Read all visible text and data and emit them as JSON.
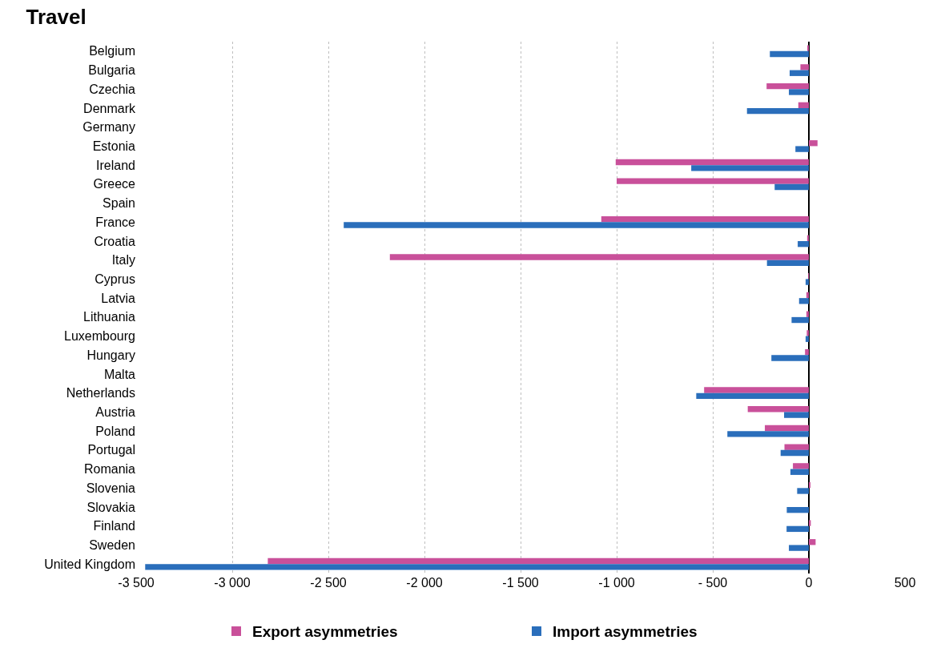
{
  "chart_data": {
    "type": "bar",
    "orientation": "horizontal",
    "title": "Travel",
    "categories": [
      "Belgium",
      "Bulgaria",
      "Czechia",
      "Denmark",
      "Germany",
      "Estonia",
      "Ireland",
      "Greece",
      "Spain",
      "France",
      "Croatia",
      "Italy",
      "Cyprus",
      "Latvia",
      "Lithuania",
      "Luxembourg",
      "Hungary",
      "Malta",
      "Netherlands",
      "Austria",
      "Poland",
      "Portugal",
      "Romania",
      "Slovenia",
      "Slovakia",
      "Finland",
      "Sweden",
      "United Kingdom"
    ],
    "series": [
      {
        "name": "Export asymmetries",
        "color": "#c9509a",
        "values": [
          -8,
          -44,
          -220,
          -55,
          null,
          45,
          -1005,
          -1000,
          null,
          -1080,
          -9,
          -2180,
          -3,
          -13,
          -13,
          -11,
          -20,
          null,
          -545,
          -318,
          -229,
          -127,
          -83,
          6,
          null,
          10,
          35,
          -2815
        ]
      },
      {
        "name": "Import asymmetries",
        "color": "#2a6ebb",
        "values": [
          -203,
          -100,
          -104,
          -322,
          null,
          -70,
          -612,
          -178,
          null,
          -2420,
          -58,
          -218,
          -17,
          -51,
          -90,
          -17,
          -195,
          null,
          -586,
          -129,
          -424,
          -147,
          -96,
          -61,
          -115,
          -116,
          -104,
          -3453
        ]
      }
    ],
    "xlim": [
      -3500,
      500
    ],
    "xticks": [
      {
        "value": -3500,
        "label": "-3 500"
      },
      {
        "value": -3000,
        "label": "-3 000"
      },
      {
        "value": -2500,
        "label": "-2 500"
      },
      {
        "value": -2000,
        "label": "-2 000"
      },
      {
        "value": -1500,
        "label": "-1 500"
      },
      {
        "value": -1000,
        "label": "-1 000"
      },
      {
        "value": -500,
        "label": "- 500"
      },
      0,
      500
    ],
    "grid": "x",
    "legend": "bottom"
  }
}
